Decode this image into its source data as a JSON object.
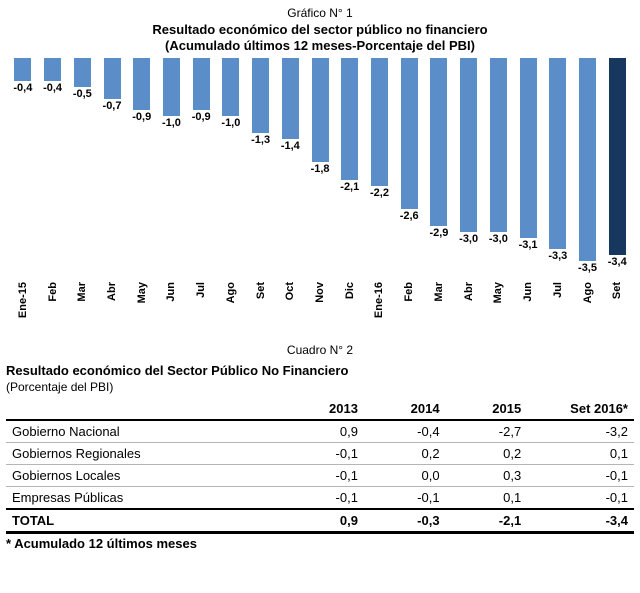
{
  "chart": {
    "header": "Gráfico N° 1",
    "title": "Resultado económico del sector público no financiero",
    "subtitle": "(Acumulado últimos 12 meses-Porcentaje del PBI)"
  },
  "chart_data": {
    "type": "bar",
    "title": "Resultado económico del sector público no financiero (Acumulado últimos 12 meses-Porcentaje del PBI)",
    "categories": [
      "Ene-15",
      "Feb",
      "Mar",
      "Abr",
      "May",
      "Jun",
      "Jul",
      "Ago",
      "Set",
      "Oct",
      "Nov",
      "Dic",
      "Ene-16",
      "Feb",
      "Mar",
      "Abr",
      "May",
      "Jun",
      "Jul",
      "Ago",
      "Set"
    ],
    "values": [
      -0.4,
      -0.4,
      -0.5,
      -0.7,
      -0.9,
      -1.0,
      -0.9,
      -1.0,
      -1.3,
      -1.4,
      -1.8,
      -2.1,
      -2.2,
      -2.6,
      -2.9,
      -3.0,
      -3.0,
      -3.1,
      -3.3,
      -3.5,
      -3.4
    ],
    "labels": [
      "-0,4",
      "-0,4",
      "-0,5",
      "-0,7",
      "-0,9",
      "-1,0",
      "-0,9",
      "-1,0",
      "-1,3",
      "-1,4",
      "-1,8",
      "-2,1",
      "-2,2",
      "-2,6",
      "-2,9",
      "-3,0",
      "-3,0",
      "-3,1",
      "-3,3",
      "-3,5",
      "-3,4"
    ],
    "xlabel": "",
    "ylabel": "Porcentaje del PBI",
    "ylim": [
      -3.5,
      0
    ],
    "grid": false,
    "legend": "none",
    "bar_color": "#5b8dc9",
    "highlight_last_color": "#17375e"
  },
  "table": {
    "header": "Cuadro N° 2",
    "title": "Resultado económico del Sector Público No Financiero",
    "subtitle": "(Porcentaje del PBI)",
    "columns": [
      "",
      "2013",
      "2014",
      "2015",
      "Set 2016*"
    ],
    "rows": [
      {
        "label": "Gobierno Nacional",
        "values": [
          "0,9",
          "-0,4",
          "-2,7",
          "-3,2"
        ],
        "bold": false
      },
      {
        "label": "Gobiernos Regionales",
        "values": [
          "-0,1",
          "0,2",
          "0,2",
          "0,1"
        ],
        "bold": false
      },
      {
        "label": "Gobiernos Locales",
        "values": [
          "-0,1",
          "0,0",
          "0,3",
          "-0,1"
        ],
        "bold": false
      },
      {
        "label": "Empresas Públicas",
        "values": [
          "-0,1",
          "-0,1",
          "0,1",
          "-0,1"
        ],
        "bold": false
      },
      {
        "label": "TOTAL",
        "values": [
          "0,9",
          "-0,3",
          "-2,1",
          "-3,4"
        ],
        "bold": true
      }
    ],
    "footnote": "* Acumulado 12 últimos meses"
  }
}
